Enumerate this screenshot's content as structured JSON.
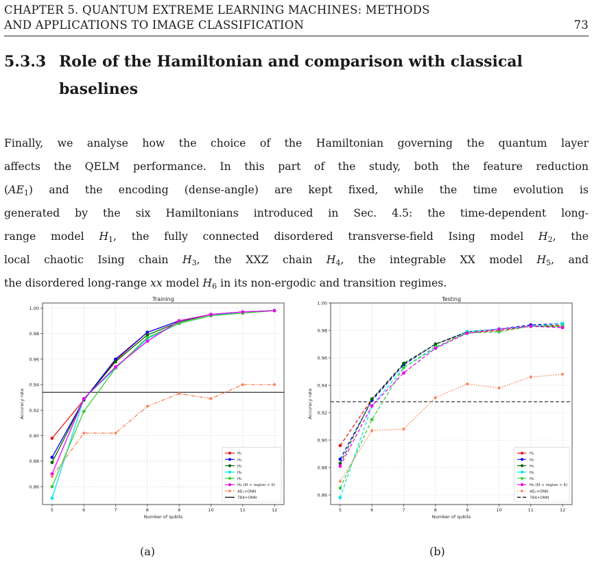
{
  "header": {
    "line1": "CHAPTER 5.  QUANTUM EXTREME LEARNING MACHINES: METHODS",
    "line2": "AND APPLICATIONS TO IMAGE CLASSIFICATION",
    "page_number": "73"
  },
  "section": {
    "number": "5.3.3",
    "title_line1": "Role of the Hamiltonian and comparison with classical",
    "title_line2": "baselines"
  },
  "paragraph": {
    "l1": "Finally, we analyse how the choice of the Hamiltonian governing the quantum layer",
    "l2": "affects the QELM performance. In this part of the study, both the feature reduction",
    "l3a": "(",
    "l3b": "AE",
    "l3c": "1",
    "l3d": ") and the encoding (dense-angle) are kept fixed, while the time evolution is",
    "l4": "generated by the six Hamiltonians introduced in Sec. 4.5: the time-dependent long-",
    "l5a": "range model ",
    "l5b": "H",
    "l5c": "1",
    "l5d": ", the fully connected disordered transverse-field Ising model ",
    "l5e": "H",
    "l5f": "2",
    "l5g": ", the",
    "l6a": "local chaotic Ising chain ",
    "l6b": "H",
    "l6c": "3",
    "l6d": ", the XXZ chain ",
    "l6e": "H",
    "l6f": "4",
    "l6g": ", the integrable XX model ",
    "l6h": "H",
    "l6i": "5",
    "l6j": ", and",
    "l7a": "the disordered long-range ",
    "l7b": "xx",
    "l7c": " model ",
    "l7d": "H",
    "l7e": "6",
    "l7f": " in its non-ergodic and transition regimes."
  },
  "captions": {
    "a": "(a)",
    "b": "(b)"
  },
  "colors": {
    "H1": "#e41a1c",
    "H2": "#0000ee",
    "H3": "#006400",
    "H4": "#00e5ee",
    "H5": "#3cc93c",
    "H6": "#ee00ee",
    "AE1": "#ff7f50",
    "baseline": "#000000"
  },
  "chart_data": [
    {
      "type": "line",
      "title": "Training",
      "xlabel": "Number of qubits",
      "ylabel": "Accuracy rate",
      "x": [
        5,
        6,
        7,
        8,
        9,
        10,
        11,
        12
      ],
      "xlim": [
        4.7,
        12.3
      ],
      "ylim": [
        0.846,
        1.004
      ],
      "yticks": [
        0.86,
        0.88,
        0.9,
        0.92,
        0.94,
        0.96,
        0.98,
        1.0
      ],
      "ytick_labels": [
        "0.86",
        "0.88",
        "0.90",
        "0.92",
        "0.94",
        "0.96",
        "0.98",
        "1.00"
      ],
      "xtick_labels": [
        "5",
        "6",
        "7",
        "8",
        "9",
        "10",
        "11",
        "12"
      ],
      "grid": true,
      "legend_position": "lower-right",
      "series": [
        {
          "name": "H1",
          "legend": "H₁",
          "color_key": "H1",
          "style": "solid",
          "marker": "circle",
          "values": [
            0.898,
            0.928,
            0.959,
            0.981,
            0.99,
            0.995,
            0.997,
            0.998
          ]
        },
        {
          "name": "H2",
          "legend": "H₂",
          "color_key": "H2",
          "style": "solid",
          "marker": "circle",
          "values": [
            0.883,
            0.928,
            0.96,
            0.981,
            0.99,
            0.995,
            0.997,
            0.998
          ]
        },
        {
          "name": "H3",
          "legend": "H₃",
          "color_key": "H3",
          "style": "solid",
          "marker": "circle",
          "values": [
            0.879,
            0.928,
            0.958,
            0.979,
            0.989,
            0.995,
            0.997,
            0.998
          ]
        },
        {
          "name": "H4",
          "legend": "H₄",
          "color_key": "H4",
          "style": "solid",
          "marker": "circle",
          "values": [
            0.851,
            0.929,
            0.953,
            0.976,
            0.988,
            0.994,
            0.997,
            0.998
          ]
        },
        {
          "name": "H5",
          "legend": "H₅",
          "color_key": "H5",
          "style": "solid",
          "marker": "circle",
          "values": [
            0.86,
            0.919,
            0.953,
            0.977,
            0.988,
            0.994,
            0.996,
            0.998
          ]
        },
        {
          "name": "H6",
          "legend": "H₆ (III < region < II)",
          "color_key": "H6",
          "style": "solid",
          "marker": "circle",
          "values": [
            0.87,
            0.929,
            0.954,
            0.974,
            0.99,
            0.995,
            0.997,
            0.998
          ]
        },
        {
          "name": "AE1+ONN",
          "legend": "AE₁+ONN",
          "color_key": "AE1",
          "style": "dashdot",
          "marker": "diamond",
          "values": [
            0.868,
            0.902,
            0.902,
            0.923,
            0.933,
            0.929,
            0.94,
            0.94
          ]
        }
      ],
      "baseline": {
        "name": "784+ONN",
        "legend": "784+ONN",
        "value": 0.934,
        "style": "solid"
      }
    },
    {
      "type": "line",
      "title": "Testing",
      "xlabel": "Number of qubits",
      "ylabel": "Accuracy rate",
      "x": [
        5,
        6,
        7,
        8,
        9,
        10,
        11,
        12
      ],
      "xlim": [
        4.7,
        12.3
      ],
      "ylim": [
        0.853,
        1.0
      ],
      "yticks": [
        0.86,
        0.88,
        0.9,
        0.92,
        0.94,
        0.96,
        0.98,
        1.0
      ],
      "ytick_labels": [
        "0.86",
        "0.88",
        "0.90",
        "0.92",
        "0.94",
        "0.96",
        "0.98",
        "1.00"
      ],
      "xtick_labels": [
        "5",
        "6",
        "7",
        "8",
        "9",
        "10",
        "11",
        "12"
      ],
      "grid": true,
      "legend_position": "lower-right",
      "series": [
        {
          "name": "H1",
          "legend": "H₁",
          "color_key": "H1",
          "style": "dashed",
          "marker": "circle",
          "values": [
            0.896,
            0.93,
            0.955,
            0.97,
            0.978,
            0.98,
            0.983,
            0.984
          ]
        },
        {
          "name": "H2",
          "legend": "H₂",
          "color_key": "H2",
          "style": "dashed",
          "marker": "circle",
          "values": [
            0.886,
            0.929,
            0.955,
            0.97,
            0.979,
            0.981,
            0.984,
            0.985
          ]
        },
        {
          "name": "H3",
          "legend": "H₃",
          "color_key": "H3",
          "style": "dashed",
          "marker": "circle",
          "values": [
            0.883,
            0.93,
            0.956,
            0.97,
            0.979,
            0.981,
            0.983,
            0.983
          ]
        },
        {
          "name": "H4",
          "legend": "H₄",
          "color_key": "H4",
          "style": "dashed",
          "marker": "circle",
          "values": [
            0.858,
            0.925,
            0.953,
            0.967,
            0.979,
            0.981,
            0.983,
            0.985
          ]
        },
        {
          "name": "H5",
          "legend": "H₅",
          "color_key": "H5",
          "style": "dashed",
          "marker": "circle",
          "values": [
            0.865,
            0.915,
            0.953,
            0.968,
            0.978,
            0.979,
            0.983,
            0.983
          ]
        },
        {
          "name": "H6",
          "legend": "H₆ (III < region < II)",
          "color_key": "H6",
          "style": "dashed",
          "marker": "circle",
          "values": [
            0.881,
            0.925,
            0.949,
            0.967,
            0.978,
            0.981,
            0.983,
            0.982
          ]
        },
        {
          "name": "AE1+ONN",
          "legend": "AE₁+ONN",
          "color_key": "AE1",
          "style": "dotted",
          "marker": "diamond",
          "values": [
            0.87,
            0.907,
            0.908,
            0.931,
            0.941,
            0.938,
            0.946,
            0.948
          ]
        }
      ],
      "baseline": {
        "name": "784+ONN",
        "legend": "784+ONN",
        "value": 0.928,
        "style": "dashed"
      }
    }
  ]
}
